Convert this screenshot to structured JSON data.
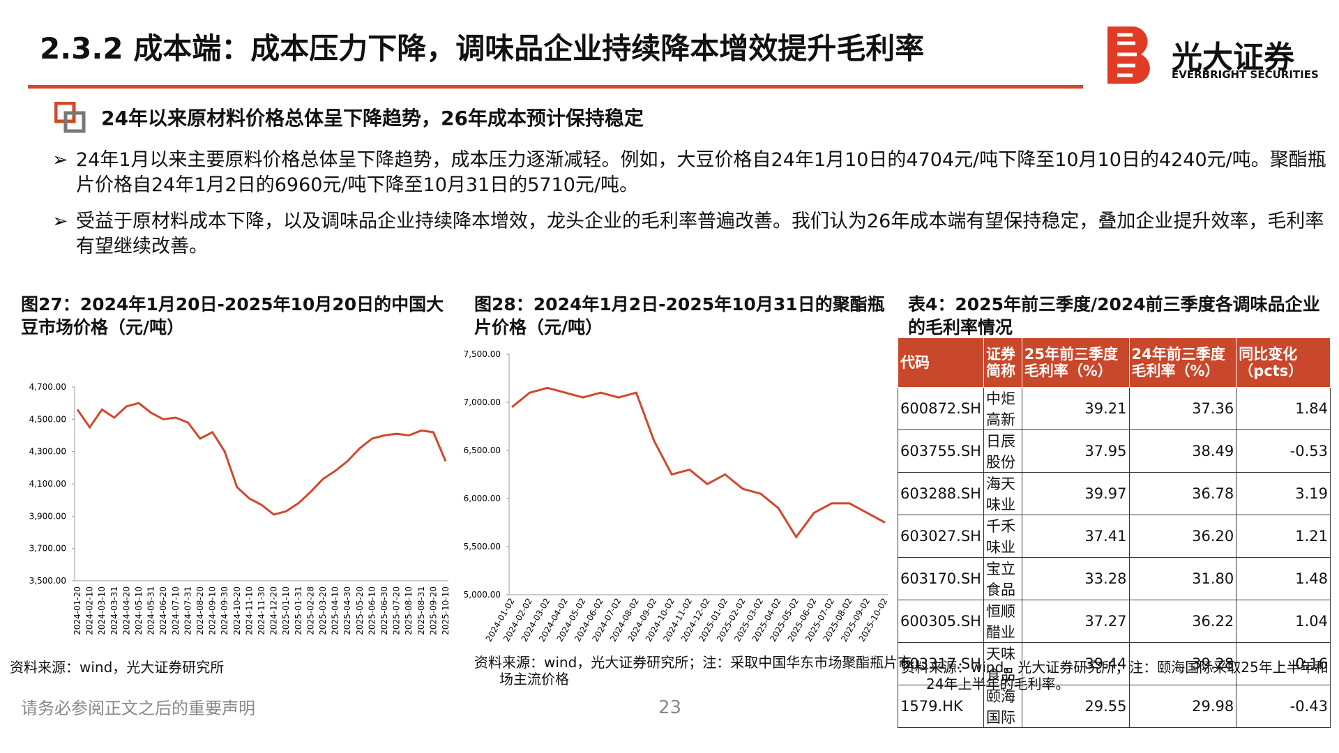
{
  "header": {
    "title": "2.3.2 成本端：成本压力下降，调味品企业持续降本增效提升毛利率",
    "logo_cn": "光大证券",
    "logo_en": "EVERBRIGHT SECURITIES"
  },
  "section": {
    "heading": "24年以来原材料价格总体呈下降趋势，26年成本预计保持稳定",
    "bullets": [
      "24年1月以来主要原料价格总体呈下降趋势，成本压力逐渐减轻。例如，大豆价格自24年1月10日的4704元/吨下降至10月10日的4240元/吨。聚酯瓶片价格自24年1月2日的6960元/吨下降至10月31日的5710元/吨。",
      "受益于原材料成本下降，以及调味品企业持续降本增效，龙头企业的毛利率普遍改善。我们认为26年成本端有望保持稳定，叠加企业提升效率，毛利率有望继续改善。"
    ]
  },
  "chart_data": [
    {
      "type": "line",
      "title": "图27：2024年1月20日-2025年10月20日的中国大豆市场价格（元/吨）",
      "source": "资料来源：wind，光大证券研究所",
      "color": "#d2472b",
      "categories": [
        "2024-01-20",
        "2024-02-10",
        "2024-03-10",
        "2024-03-31",
        "2024-04-20",
        "2024-05-10",
        "2024-05-31",
        "2024-06-20",
        "2024-07-10",
        "2024-07-31",
        "2024-08-20",
        "2024-09-10",
        "2024-09-30",
        "2024-10-20",
        "2024-11-10",
        "2024-11-30",
        "2024-12-20",
        "2025-01-10",
        "2025-01-31",
        "2025-02-28",
        "2025-03-20",
        "2025-04-10",
        "2025-04-30",
        "2025-05-20",
        "2025-06-10",
        "2025-06-30",
        "2025-07-20",
        "2025-08-10",
        "2025-08-31",
        "2025-09-20",
        "2025-10-10"
      ],
      "values": [
        4560,
        4450,
        4560,
        4510,
        4580,
        4600,
        4540,
        4500,
        4510,
        4480,
        4380,
        4420,
        4300,
        4080,
        4010,
        3970,
        3910,
        3930,
        3980,
        4050,
        4130,
        4180,
        4240,
        4320,
        4380,
        4400,
        4410,
        4400,
        4430,
        4420,
        4240
      ],
      "ylim": [
        3500,
        4700
      ],
      "yticks": [
        {
          "value": 3500,
          "label": "3,500.00"
        },
        {
          "value": 3700,
          "label": "3,700.00"
        },
        {
          "value": 3900,
          "label": "3,900.00"
        },
        {
          "value": 4100,
          "label": "4,100.00"
        },
        {
          "value": 4300,
          "label": "4,300.00"
        },
        {
          "value": 4500,
          "label": "4,500.00"
        },
        {
          "value": 4700,
          "label": "4,700.00"
        }
      ]
    },
    {
      "type": "line",
      "title": "图28：2024年1月2日-2025年10月31日的聚酯瓶片价格（元/吨）",
      "source": "资料来源：wind，光大证券研究所；注：采取中国华东市场聚酯瓶片市场主流价格",
      "color": "#d2472b",
      "categories": [
        "2024-01-02",
        "2024-02-02",
        "2024-03-02",
        "2024-04-02",
        "2024-05-02",
        "2024-06-02",
        "2024-07-02",
        "2024-08-02",
        "2024-09-02",
        "2024-10-02",
        "2024-11-02",
        "2024-12-02",
        "2025-01-02",
        "2025-02-02",
        "2025-03-02",
        "2025-04-02",
        "2025-05-02",
        "2025-06-02",
        "2025-07-02",
        "2025-08-02",
        "2025-09-02",
        "2025-10-02"
      ],
      "values": [
        6950,
        7100,
        7150,
        7100,
        7050,
        7100,
        7050,
        7100,
        6600,
        6250,
        6300,
        6150,
        6250,
        6100,
        6050,
        5900,
        5600,
        5850,
        5950,
        5950,
        5850,
        5750
      ],
      "ylim": [
        5000,
        7500
      ],
      "yticks": [
        {
          "value": 5000,
          "label": "5,000.00"
        },
        {
          "value": 5500,
          "label": "5,500.00"
        },
        {
          "value": 6000,
          "label": "6,000.00"
        },
        {
          "value": 6500,
          "label": "6,500.00"
        },
        {
          "value": 7000,
          "label": "7,000.00"
        },
        {
          "value": 7500,
          "label": "7,500.00"
        }
      ]
    }
  ],
  "table": {
    "title": "表4：2025年前三季度/2024前三季度各调味品企业的毛利率情况",
    "source": "资料来源：wind，光大证券研究所；注：颐海国际采取25年上半年和24年上半年的毛利率。",
    "header": [
      "代码",
      "证券简称",
      "25年前三季度毛利率（%）",
      "24年前三季度毛利率（%）",
      "同比变化（pcts）"
    ],
    "rows": [
      [
        "600872.SH",
        "中炬高新",
        "39.21",
        "37.36",
        "1.84"
      ],
      [
        "603755.SH",
        "日辰股份",
        "37.95",
        "38.49",
        "-0.53"
      ],
      [
        "603288.SH",
        "海天味业",
        "39.97",
        "36.78",
        "3.19"
      ],
      [
        "603027.SH",
        "千禾味业",
        "37.41",
        "36.20",
        "1.21"
      ],
      [
        "603170.SH",
        "宝立食品",
        "33.28",
        "31.80",
        "1.48"
      ],
      [
        "600305.SH",
        "恒顺醋业",
        "37.27",
        "36.22",
        "1.04"
      ],
      [
        "603317.SH",
        "天味食品",
        "39.44",
        "39.28",
        "0.16"
      ],
      [
        "1579.HK",
        "颐海国际",
        "29.55",
        "29.98",
        "-0.43"
      ]
    ]
  },
  "footer": {
    "disclaimer": "请务必参阅正文之后的重要声明",
    "page": "23"
  }
}
